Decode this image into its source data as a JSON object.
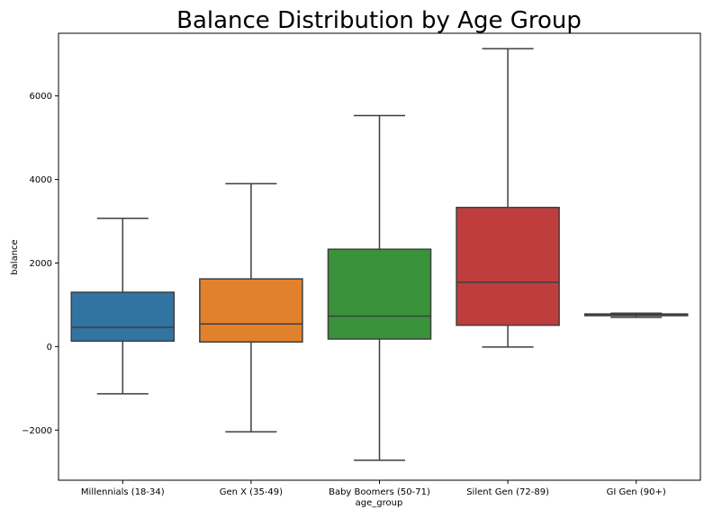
{
  "chart_data": {
    "type": "box",
    "title": "Balance Distribution by Age Group",
    "xlabel": "age_group",
    "ylabel": "balance",
    "ylim": [
      -3200,
      7500
    ],
    "yticks": [
      -2000,
      0,
      2000,
      4000,
      6000
    ],
    "ytick_labels": [
      "−2000",
      "0",
      "2000",
      "4000",
      "6000"
    ],
    "grid": false,
    "categories": [
      "Millennials (18-34)",
      "Gen X (35-49)",
      "Baby Boomers (50-71)",
      "Silent Gen (72-89)",
      "GI Gen (90+)"
    ],
    "boxes": [
      {
        "category": "Millennials (18-34)",
        "whisker_low": -1130,
        "q1": 130,
        "median": 460,
        "q3": 1300,
        "whisker_high": 3070,
        "color": "#3274a1"
      },
      {
        "category": "Gen X (35-49)",
        "whisker_low": -2040,
        "q1": 110,
        "median": 540,
        "q3": 1620,
        "whisker_high": 3900,
        "color": "#e1812c"
      },
      {
        "category": "Baby Boomers (50-71)",
        "whisker_low": -2720,
        "q1": 180,
        "median": 730,
        "q3": 2330,
        "whisker_high": 5530,
        "color": "#3a923a"
      },
      {
        "category": "Silent Gen (72-89)",
        "whisker_low": -10,
        "q1": 510,
        "median": 1540,
        "q3": 3330,
        "whisker_high": 7130,
        "color": "#c03d3e"
      },
      {
        "category": "GI Gen (90+)",
        "whisker_low": 700,
        "q1": 740,
        "median": 760,
        "q3": 780,
        "whisker_high": 800,
        "color": "#9372b2"
      }
    ]
  }
}
